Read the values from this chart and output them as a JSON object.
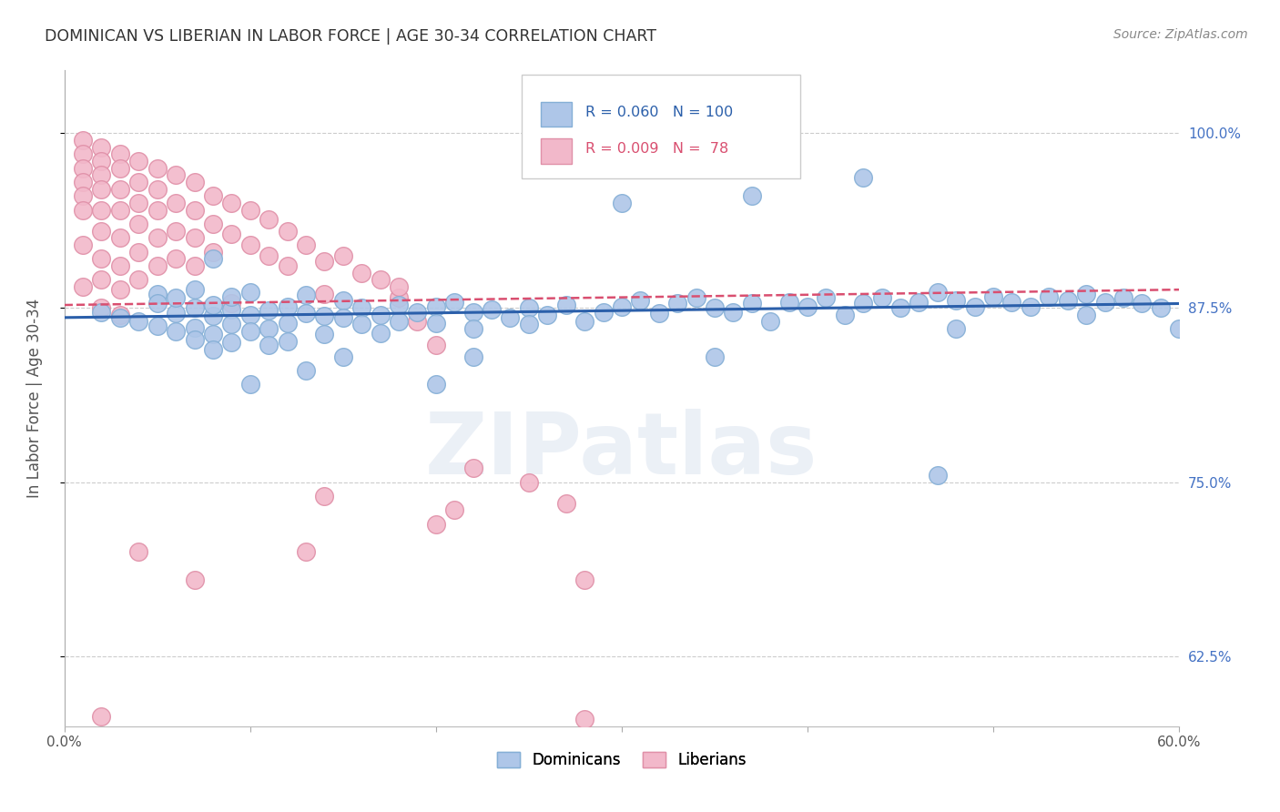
{
  "title": "DOMINICAN VS LIBERIAN IN LABOR FORCE | AGE 30-34 CORRELATION CHART",
  "source": "Source: ZipAtlas.com",
  "ylabel": "In Labor Force | Age 30-34",
  "xlim": [
    0.0,
    0.6
  ],
  "ylim": [
    0.575,
    1.045
  ],
  "xticks": [
    0.0,
    0.1,
    0.2,
    0.3,
    0.4,
    0.5,
    0.6
  ],
  "xticklabels": [
    "0.0%",
    "",
    "",
    "",
    "",
    "",
    "60.0%"
  ],
  "ytick_positions": [
    0.625,
    0.75,
    0.875,
    1.0
  ],
  "ytick_labels": [
    "62.5%",
    "75.0%",
    "87.5%",
    "100.0%"
  ],
  "blue_R": 0.06,
  "blue_N": 100,
  "pink_R": 0.009,
  "pink_N": 78,
  "blue_color": "#aec6e8",
  "blue_edge": "#85afd6",
  "pink_color": "#f2b8ca",
  "pink_edge": "#e090a8",
  "blue_line_color": "#2b5faa",
  "pink_line_color": "#d94f70",
  "watermark": "ZIPatlas",
  "background_color": "#ffffff",
  "grid_color": "#cccccc",
  "blue_scatter_x": [
    0.02,
    0.03,
    0.04,
    0.05,
    0.05,
    0.05,
    0.06,
    0.06,
    0.06,
    0.07,
    0.07,
    0.07,
    0.07,
    0.08,
    0.08,
    0.08,
    0.08,
    0.09,
    0.09,
    0.09,
    0.09,
    0.1,
    0.1,
    0.1,
    0.11,
    0.11,
    0.11,
    0.12,
    0.12,
    0.12,
    0.13,
    0.13,
    0.14,
    0.14,
    0.15,
    0.15,
    0.16,
    0.16,
    0.17,
    0.17,
    0.18,
    0.18,
    0.19,
    0.2,
    0.2,
    0.21,
    0.22,
    0.22,
    0.23,
    0.24,
    0.25,
    0.25,
    0.26,
    0.27,
    0.28,
    0.29,
    0.3,
    0.31,
    0.32,
    0.33,
    0.34,
    0.35,
    0.36,
    0.37,
    0.38,
    0.39,
    0.4,
    0.41,
    0.42,
    0.43,
    0.44,
    0.45,
    0.46,
    0.47,
    0.48,
    0.49,
    0.5,
    0.51,
    0.52,
    0.53,
    0.54,
    0.55,
    0.56,
    0.57,
    0.58,
    0.59,
    0.43,
    0.3,
    0.35,
    0.48,
    0.2,
    0.15,
    0.08,
    0.1,
    0.13,
    0.22,
    0.37,
    0.55,
    0.47,
    0.6
  ],
  "blue_scatter_y": [
    0.872,
    0.868,
    0.865,
    0.885,
    0.862,
    0.878,
    0.871,
    0.858,
    0.882,
    0.875,
    0.861,
    0.852,
    0.888,
    0.869,
    0.856,
    0.877,
    0.845,
    0.874,
    0.863,
    0.85,
    0.883,
    0.87,
    0.858,
    0.886,
    0.873,
    0.86,
    0.848,
    0.876,
    0.864,
    0.851,
    0.871,
    0.884,
    0.869,
    0.856,
    0.88,
    0.868,
    0.875,
    0.863,
    0.87,
    0.857,
    0.877,
    0.865,
    0.872,
    0.876,
    0.864,
    0.879,
    0.872,
    0.86,
    0.874,
    0.868,
    0.875,
    0.863,
    0.87,
    0.877,
    0.865,
    0.872,
    0.876,
    0.88,
    0.871,
    0.878,
    0.882,
    0.875,
    0.872,
    0.878,
    0.865,
    0.879,
    0.876,
    0.882,
    0.87,
    0.878,
    0.882,
    0.875,
    0.879,
    0.886,
    0.88,
    0.876,
    0.883,
    0.879,
    0.876,
    0.883,
    0.88,
    0.885,
    0.879,
    0.882,
    0.878,
    0.875,
    0.968,
    0.95,
    0.84,
    0.86,
    0.82,
    0.84,
    0.91,
    0.82,
    0.83,
    0.84,
    0.955,
    0.87,
    0.755,
    0.86
  ],
  "pink_scatter_x": [
    0.01,
    0.01,
    0.01,
    0.01,
    0.01,
    0.01,
    0.01,
    0.01,
    0.02,
    0.02,
    0.02,
    0.02,
    0.02,
    0.02,
    0.02,
    0.02,
    0.02,
    0.03,
    0.03,
    0.03,
    0.03,
    0.03,
    0.03,
    0.03,
    0.04,
    0.04,
    0.04,
    0.04,
    0.04,
    0.04,
    0.05,
    0.05,
    0.05,
    0.05,
    0.05,
    0.06,
    0.06,
    0.06,
    0.06,
    0.07,
    0.07,
    0.07,
    0.07,
    0.08,
    0.08,
    0.08,
    0.09,
    0.09,
    0.1,
    0.1,
    0.11,
    0.11,
    0.12,
    0.12,
    0.13,
    0.14,
    0.15,
    0.16,
    0.17,
    0.18,
    0.19,
    0.2,
    0.03,
    0.02,
    0.04,
    0.09,
    0.14,
    0.18,
    0.22,
    0.25,
    0.28,
    0.14,
    0.21,
    0.28,
    0.07,
    0.13,
    0.2,
    0.27
  ],
  "pink_scatter_y": [
    0.995,
    0.985,
    0.975,
    0.965,
    0.955,
    0.945,
    0.92,
    0.89,
    0.99,
    0.98,
    0.97,
    0.96,
    0.945,
    0.93,
    0.91,
    0.895,
    0.875,
    0.985,
    0.975,
    0.96,
    0.945,
    0.925,
    0.905,
    0.888,
    0.98,
    0.965,
    0.95,
    0.935,
    0.915,
    0.895,
    0.975,
    0.96,
    0.945,
    0.925,
    0.905,
    0.97,
    0.95,
    0.93,
    0.91,
    0.965,
    0.945,
    0.925,
    0.905,
    0.955,
    0.935,
    0.915,
    0.95,
    0.928,
    0.945,
    0.92,
    0.938,
    0.912,
    0.93,
    0.905,
    0.92,
    0.908,
    0.912,
    0.9,
    0.895,
    0.882,
    0.865,
    0.848,
    0.87,
    0.582,
    0.7,
    0.878,
    0.885,
    0.89,
    0.76,
    0.75,
    0.58,
    0.74,
    0.73,
    0.68,
    0.68,
    0.7,
    0.72,
    0.735
  ]
}
